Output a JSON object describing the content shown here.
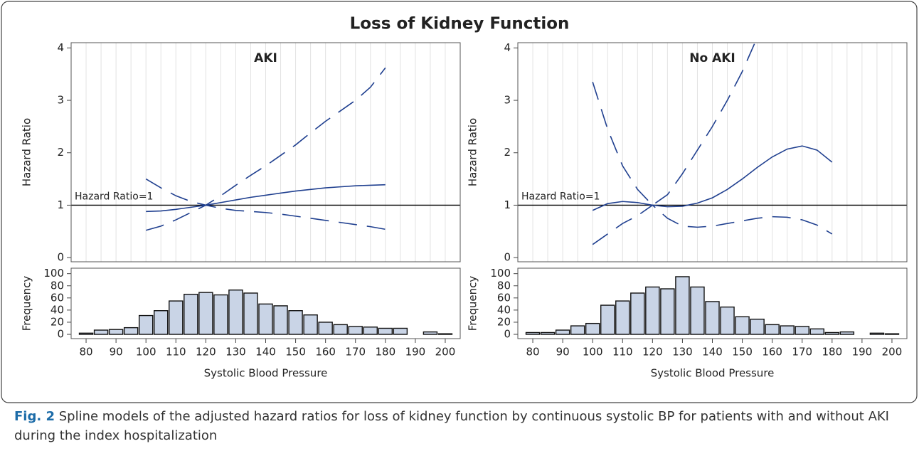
{
  "title": "Loss of Kidney Function",
  "caption": {
    "label": "Fig. 2",
    "text": "Spline models of the adjusted hazard ratios for loss of kidney function by continuous systolic BP for patients with and without AKI during the index hospitalization"
  },
  "chart_data": [
    {
      "type": "line",
      "title": "AKI",
      "ylabel": "Hazard Ratio",
      "x": [
        100,
        105,
        110,
        115,
        120,
        125,
        130,
        135,
        140,
        145,
        150,
        155,
        160,
        165,
        170,
        175,
        180
      ],
      "series": [
        {
          "color": "#1f3f8f",
          "dash": false,
          "values": [
            0.88,
            0.89,
            0.92,
            0.96,
            1.0,
            1.05,
            1.1,
            1.15,
            1.19,
            1.23,
            1.27,
            1.3,
            1.33,
            1.35,
            1.37,
            1.38,
            1.39
          ]
        },
        {
          "color": "#1f3f8f",
          "dash": true,
          "values": [
            1.5,
            1.33,
            1.18,
            1.07,
            1.0,
            1.18,
            1.38,
            1.57,
            1.75,
            1.95,
            2.15,
            2.38,
            2.6,
            2.8,
            3.0,
            3.25,
            3.62
          ]
        },
        {
          "color": "#1f3f8f",
          "dash": true,
          "values": [
            0.52,
            0.6,
            0.72,
            0.86,
            1.0,
            0.94,
            0.9,
            0.88,
            0.86,
            0.83,
            0.79,
            0.75,
            0.71,
            0.67,
            0.63,
            0.59,
            0.54
          ]
        }
      ],
      "reference": {
        "text": "Hazard Ratio=1",
        "y": 1
      },
      "xlim": [
        75,
        205
      ],
      "xgrid": [
        80,
        85,
        90,
        95,
        100,
        105,
        110,
        115,
        120,
        125,
        130,
        135,
        140,
        145,
        150,
        155,
        160,
        165,
        170,
        175,
        180,
        185,
        190,
        195,
        200
      ],
      "ylim": [
        -0.08,
        4.1
      ],
      "yticks": [
        0,
        1,
        2,
        3,
        4
      ]
    },
    {
      "type": "histogram",
      "ylabel": "Frequency",
      "xlabel": "Systolic Blood Pressure",
      "color": "#c9d4e6",
      "bins": [
        77.5,
        82.5,
        87.5,
        92.5,
        97.5,
        102.5,
        107.5,
        112.5,
        117.5,
        122.5,
        127.5,
        132.5,
        137.5,
        142.5,
        147.5,
        152.5,
        157.5,
        162.5,
        167.5,
        172.5,
        177.5,
        182.5,
        187.5,
        192.5,
        197.5,
        202.5
      ],
      "values": [
        2,
        7,
        8,
        11,
        31,
        39,
        55,
        66,
        69,
        65,
        73,
        68,
        50,
        47,
        39,
        32,
        20,
        16,
        13,
        12,
        10,
        10,
        0,
        4,
        1
      ],
      "xlim": [
        75,
        205
      ],
      "xticks": [
        80,
        90,
        100,
        110,
        120,
        130,
        140,
        150,
        160,
        170,
        180,
        190,
        200
      ],
      "ylim": [
        -7,
        109
      ],
      "yticks": [
        0,
        20,
        40,
        60,
        80,
        100
      ]
    },
    {
      "type": "line",
      "title": "No AKI",
      "ylabel": "Hazard Ratio",
      "x": [
        100,
        105,
        110,
        115,
        120,
        125,
        130,
        135,
        140,
        145,
        150,
        155,
        160,
        165,
        170,
        175,
        180
      ],
      "series": [
        {
          "color": "#1f3f8f",
          "dash": false,
          "values": [
            0.9,
            1.03,
            1.07,
            1.05,
            1.0,
            0.97,
            0.98,
            1.04,
            1.14,
            1.3,
            1.5,
            1.72,
            1.92,
            2.07,
            2.13,
            2.05,
            1.82
          ]
        },
        {
          "color": "#1f3f8f",
          "dash": true,
          "values": [
            3.35,
            2.45,
            1.75,
            1.3,
            1.0,
            1.2,
            1.6,
            2.05,
            2.5,
            3.0,
            3.55,
            4.2,
            4.6,
            null,
            null,
            null,
            null
          ]
        },
        {
          "color": "#1f3f8f",
          "dash": true,
          "values": [
            0.25,
            0.45,
            0.65,
            0.8,
            1.0,
            0.75,
            0.6,
            0.58,
            0.6,
            0.65,
            0.7,
            0.75,
            0.78,
            0.77,
            0.72,
            0.62,
            0.45
          ]
        }
      ],
      "reference": {
        "text": "Hazard Ratio=1",
        "y": 1
      },
      "xlim": [
        75,
        205
      ],
      "xgrid": [
        80,
        85,
        90,
        95,
        100,
        105,
        110,
        115,
        120,
        125,
        130,
        135,
        140,
        145,
        150,
        155,
        160,
        165,
        170,
        175,
        180,
        185,
        190,
        195,
        200
      ],
      "ylim": [
        -0.08,
        4.1
      ],
      "yticks": [
        0,
        1,
        2,
        3,
        4
      ]
    },
    {
      "type": "histogram",
      "ylabel": "Frequency",
      "xlabel": "Systolic Blood Pressure",
      "color": "#c9d4e6",
      "bins": [
        77.5,
        82.5,
        87.5,
        92.5,
        97.5,
        102.5,
        107.5,
        112.5,
        117.5,
        122.5,
        127.5,
        132.5,
        137.5,
        142.5,
        147.5,
        152.5,
        157.5,
        162.5,
        167.5,
        172.5,
        177.5,
        182.5,
        187.5,
        192.5,
        197.5,
        202.5
      ],
      "values": [
        3,
        3,
        7,
        14,
        18,
        48,
        55,
        68,
        78,
        75,
        95,
        78,
        54,
        45,
        29,
        25,
        16,
        14,
        13,
        9,
        3,
        4,
        0,
        2,
        1
      ],
      "xlim": [
        75,
        205
      ],
      "xticks": [
        80,
        90,
        100,
        110,
        120,
        130,
        140,
        150,
        160,
        170,
        180,
        190,
        200
      ],
      "ylim": [
        -7,
        109
      ],
      "yticks": [
        0,
        20,
        40,
        60,
        80,
        100
      ]
    }
  ]
}
